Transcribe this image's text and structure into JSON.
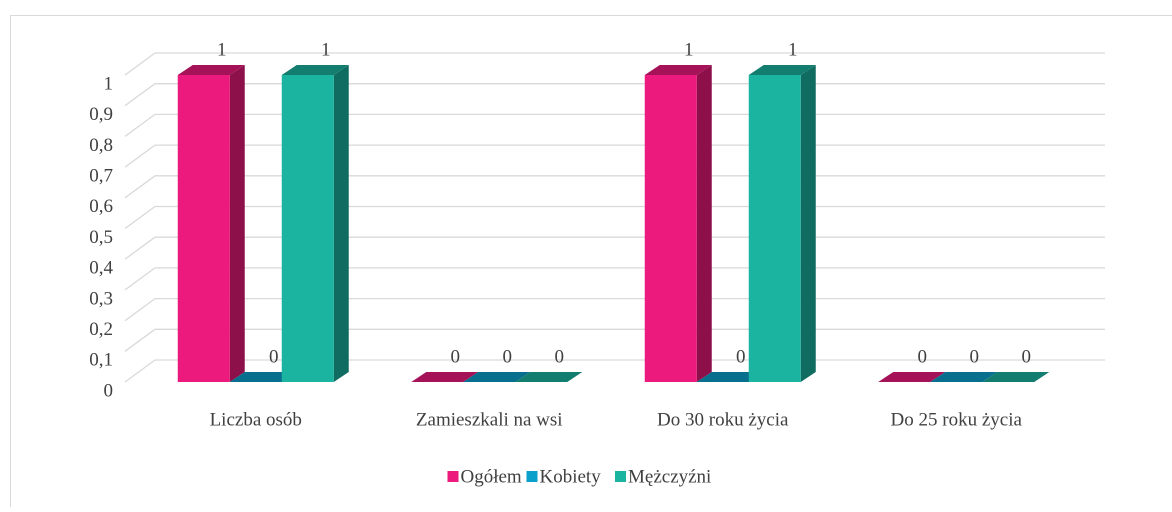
{
  "chart_data": {
    "type": "bar3d",
    "categories": [
      "Liczba osób",
      "Zamieszkali na wsi",
      "Do 30 roku życia",
      "Do 25 roku życia"
    ],
    "series": [
      {
        "name": "Ogółem",
        "color": "#ec1a7c",
        "values": [
          1,
          0,
          1,
          0
        ]
      },
      {
        "name": "Kobiety",
        "color": "#0b9fcb",
        "values": [
          0,
          0,
          0,
          0
        ]
      },
      {
        "name": "Mężczyźni",
        "color": "#1bb4a0",
        "values": [
          1,
          0,
          1,
          0
        ]
      }
    ],
    "ylim": [
      0,
      1
    ],
    "yticks": [
      0,
      {
        "value": 0.1,
        "label": "0,1"
      },
      {
        "value": 0.2,
        "label": "0,2"
      },
      {
        "value": 0.3,
        "label": "0,3"
      },
      {
        "value": 0.4,
        "label": "0,4"
      },
      {
        "value": 0.5,
        "label": "0,5"
      },
      {
        "value": 0.6,
        "label": "0,6"
      },
      {
        "value": 0.7,
        "label": "0,7"
      },
      {
        "value": 0.8,
        "label": "0,8"
      },
      {
        "value": 0.9,
        "label": "0,9"
      },
      1
    ],
    "grid": true,
    "legend": "bottom"
  }
}
